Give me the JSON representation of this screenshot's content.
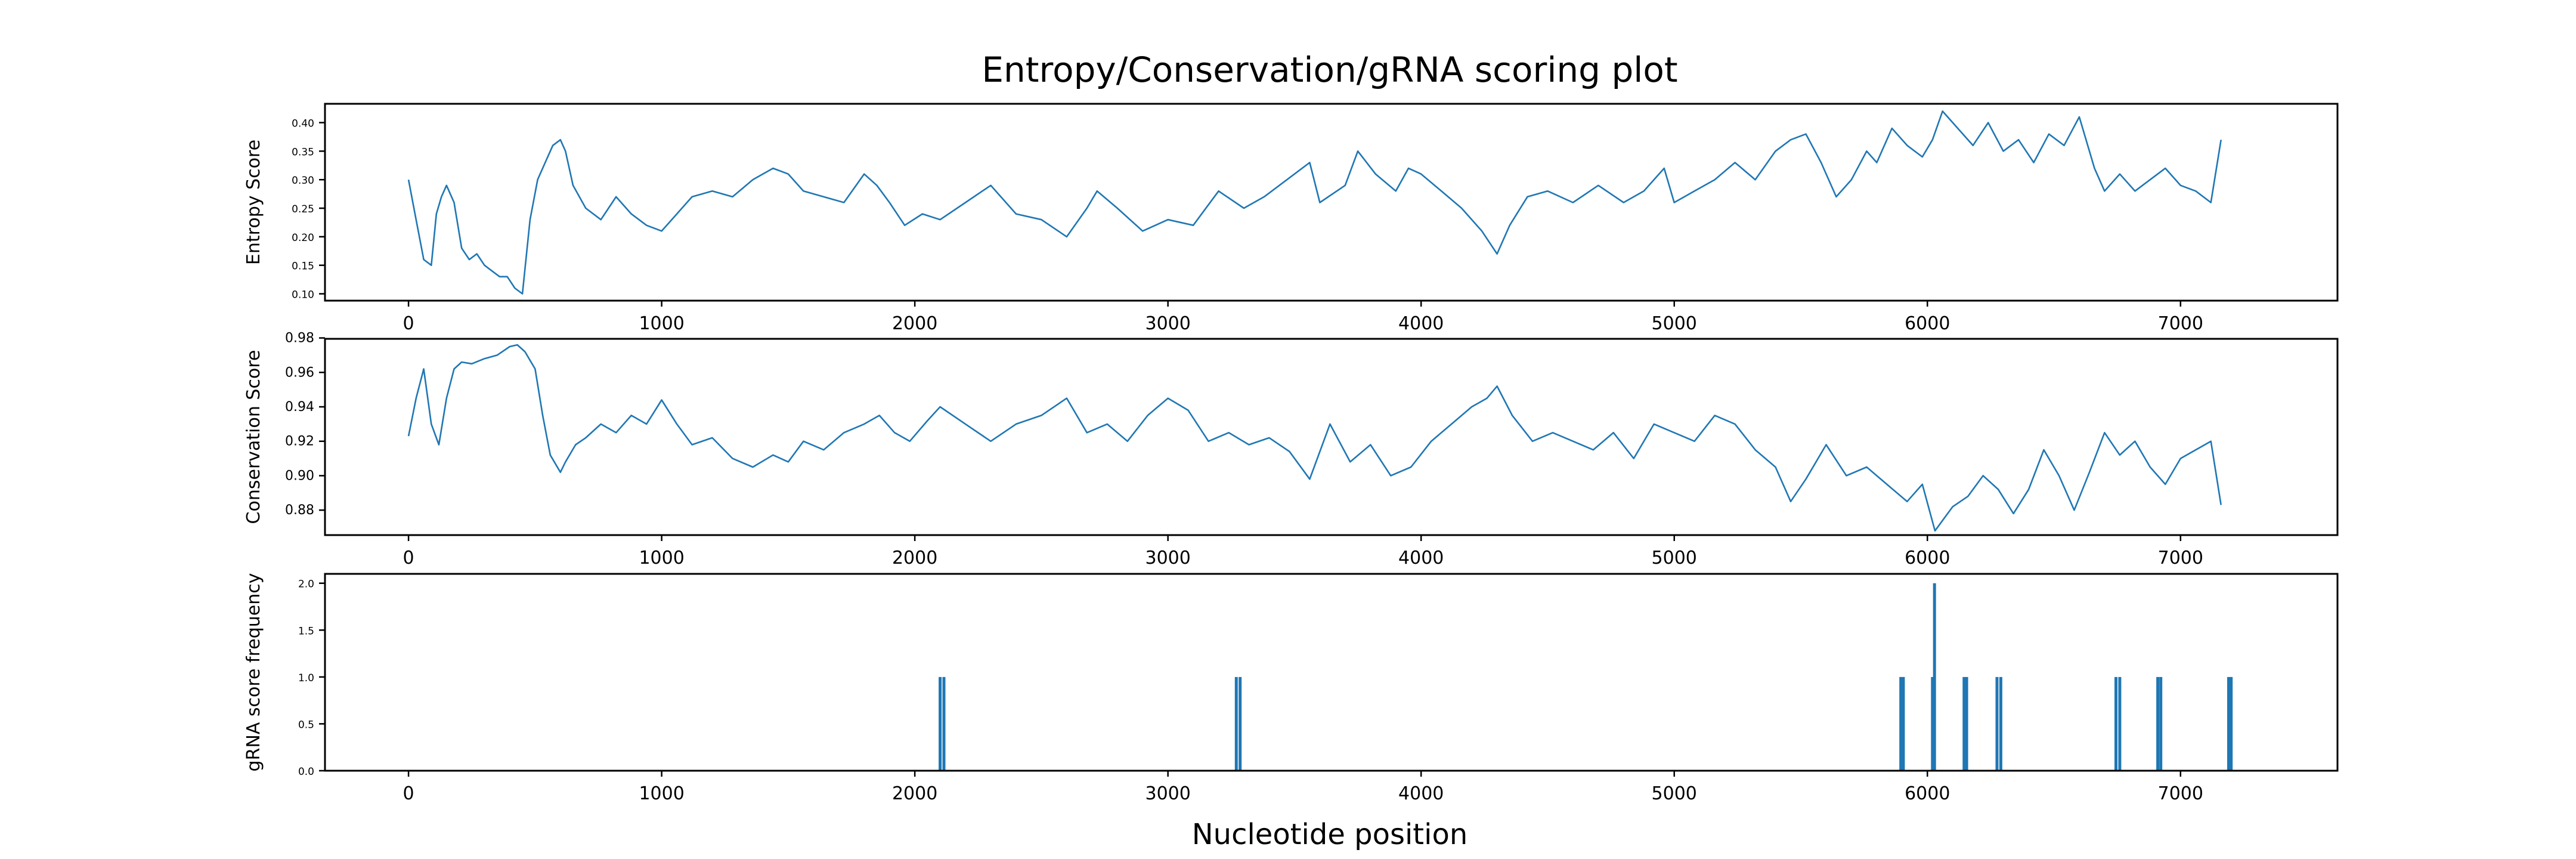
{
  "chart_data": {
    "type": "line",
    "title": "Entropy/Conservation/gRNA scoring plot",
    "xlabel": "Nucleotide position",
    "xlim": [
      -330,
      7620
    ],
    "xticks": [
      0,
      1000,
      2000,
      3000,
      4000,
      5000,
      6000,
      7000
    ],
    "xtick_labels": [
      "0",
      "1000",
      "2000",
      "3000",
      "4000",
      "5000",
      "6000",
      "7000"
    ],
    "color": "#1f77b4",
    "panels": [
      {
        "type": "line",
        "ylabel": "Entropy Score",
        "ylim": [
          0.088,
          0.433
        ],
        "yticks": [
          0.1,
          0.15,
          0.2,
          0.25,
          0.3,
          0.35,
          0.4
        ],
        "ytick_labels": [
          "0.10",
          "0.15",
          "0.20",
          "0.25",
          "0.30",
          "0.35",
          "0.40"
        ],
        "x": [
          0,
          30,
          60,
          90,
          110,
          130,
          150,
          180,
          210,
          240,
          270,
          300,
          330,
          360,
          390,
          420,
          450,
          480,
          510,
          540,
          570,
          600,
          620,
          650,
          700,
          760,
          820,
          880,
          940,
          1000,
          1060,
          1120,
          1200,
          1280,
          1360,
          1440,
          1500,
          1560,
          1640,
          1720,
          1800,
          1850,
          1900,
          1960,
          2030,
          2100,
          2200,
          2300,
          2400,
          2500,
          2600,
          2680,
          2720,
          2800,
          2900,
          3000,
          3100,
          3200,
          3300,
          3380,
          3500,
          3560,
          3600,
          3700,
          3750,
          3820,
          3900,
          3950,
          4000,
          4080,
          4160,
          4240,
          4300,
          4350,
          4420,
          4500,
          4600,
          4700,
          4800,
          4880,
          4960,
          5000,
          5080,
          5160,
          5240,
          5320,
          5400,
          5460,
          5520,
          5580,
          5640,
          5700,
          5760,
          5800,
          5860,
          5920,
          5980,
          6020,
          6060,
          6120,
          6180,
          6240,
          6300,
          6360,
          6420,
          6480,
          6540,
          6600,
          6660,
          6700,
          6760,
          6820,
          6880,
          6940,
          7000,
          7060,
          7120,
          7160
        ],
        "values": [
          0.3,
          0.23,
          0.16,
          0.15,
          0.24,
          0.27,
          0.29,
          0.26,
          0.18,
          0.16,
          0.17,
          0.15,
          0.14,
          0.13,
          0.13,
          0.11,
          0.1,
          0.23,
          0.3,
          0.33,
          0.36,
          0.37,
          0.35,
          0.29,
          0.25,
          0.23,
          0.27,
          0.24,
          0.22,
          0.21,
          0.24,
          0.27,
          0.28,
          0.27,
          0.3,
          0.32,
          0.31,
          0.28,
          0.27,
          0.26,
          0.31,
          0.29,
          0.26,
          0.22,
          0.24,
          0.23,
          0.26,
          0.29,
          0.24,
          0.23,
          0.2,
          0.25,
          0.28,
          0.25,
          0.21,
          0.23,
          0.22,
          0.28,
          0.25,
          0.27,
          0.31,
          0.33,
          0.26,
          0.29,
          0.35,
          0.31,
          0.28,
          0.32,
          0.31,
          0.28,
          0.25,
          0.21,
          0.17,
          0.22,
          0.27,
          0.28,
          0.26,
          0.29,
          0.26,
          0.28,
          0.32,
          0.26,
          0.28,
          0.3,
          0.33,
          0.3,
          0.35,
          0.37,
          0.38,
          0.33,
          0.27,
          0.3,
          0.35,
          0.33,
          0.39,
          0.36,
          0.34,
          0.37,
          0.42,
          0.39,
          0.36,
          0.4,
          0.35,
          0.37,
          0.33,
          0.38,
          0.36,
          0.41,
          0.32,
          0.28,
          0.31,
          0.28,
          0.3,
          0.32,
          0.29,
          0.28,
          0.26,
          0.37
        ]
      },
      {
        "type": "line",
        "ylabel": "Conservation Score",
        "ylim": [
          0.8655,
          0.9795
        ],
        "yticks": [
          0.88,
          0.9,
          0.92,
          0.94,
          0.96,
          0.98
        ],
        "ytick_labels": [
          "0.88",
          "0.90",
          "0.92",
          "0.94",
          "0.96",
          "0.98"
        ],
        "x": [
          0,
          30,
          60,
          90,
          120,
          150,
          180,
          210,
          250,
          300,
          350,
          400,
          430,
          460,
          500,
          530,
          560,
          600,
          620,
          660,
          700,
          760,
          820,
          880,
          940,
          1000,
          1060,
          1120,
          1200,
          1280,
          1360,
          1440,
          1500,
          1560,
          1640,
          1720,
          1800,
          1860,
          1920,
          1980,
          2050,
          2100,
          2200,
          2300,
          2400,
          2500,
          2600,
          2680,
          2760,
          2840,
          2920,
          3000,
          3080,
          3160,
          3240,
          3320,
          3400,
          3480,
          3560,
          3640,
          3720,
          3800,
          3880,
          3960,
          4040,
          4120,
          4200,
          4260,
          4300,
          4360,
          4440,
          4520,
          4600,
          4680,
          4760,
          4840,
          4920,
          5000,
          5080,
          5160,
          5240,
          5320,
          5400,
          5460,
          5520,
          5600,
          5680,
          5760,
          5840,
          5920,
          5980,
          6030,
          6100,
          6160,
          6220,
          6280,
          6340,
          6400,
          6460,
          6520,
          6580,
          6640,
          6700,
          6760,
          6820,
          6880,
          6940,
          7000,
          7060,
          7120,
          7160
        ],
        "values": [
          0.923,
          0.945,
          0.962,
          0.93,
          0.918,
          0.945,
          0.962,
          0.966,
          0.965,
          0.968,
          0.97,
          0.975,
          0.976,
          0.972,
          0.962,
          0.935,
          0.912,
          0.902,
          0.908,
          0.918,
          0.922,
          0.93,
          0.925,
          0.935,
          0.93,
          0.944,
          0.93,
          0.918,
          0.922,
          0.91,
          0.905,
          0.912,
          0.908,
          0.92,
          0.915,
          0.925,
          0.93,
          0.935,
          0.925,
          0.92,
          0.932,
          0.94,
          0.93,
          0.92,
          0.93,
          0.935,
          0.945,
          0.925,
          0.93,
          0.92,
          0.935,
          0.945,
          0.938,
          0.92,
          0.925,
          0.918,
          0.922,
          0.914,
          0.898,
          0.93,
          0.908,
          0.918,
          0.9,
          0.905,
          0.92,
          0.93,
          0.94,
          0.945,
          0.952,
          0.935,
          0.92,
          0.925,
          0.92,
          0.915,
          0.925,
          0.91,
          0.93,
          0.925,
          0.92,
          0.935,
          0.93,
          0.915,
          0.905,
          0.885,
          0.898,
          0.918,
          0.9,
          0.905,
          0.895,
          0.885,
          0.895,
          0.868,
          0.882,
          0.888,
          0.9,
          0.892,
          0.878,
          0.892,
          0.915,
          0.9,
          0.88,
          0.902,
          0.925,
          0.912,
          0.92,
          0.905,
          0.895,
          0.91,
          0.915,
          0.92,
          0.883
        ]
      },
      {
        "type": "bar",
        "ylabel": "gRNA score frequency",
        "ylim": [
          0,
          2.1
        ],
        "yticks": [
          0.0,
          0.5,
          1.0,
          1.5,
          2.0
        ],
        "ytick_labels": [
          "0.0",
          "0.5",
          "1.0",
          "1.5",
          "2.0"
        ],
        "x": [
          2100,
          2115,
          3270,
          3285,
          5895,
          5905,
          6020,
          6028,
          6145,
          6155,
          6275,
          6290,
          6745,
          6760,
          6910,
          6922,
          7190,
          7200
        ],
        "values": [
          1,
          1,
          1,
          1,
          1,
          1,
          1,
          2,
          1,
          1,
          1,
          1,
          1,
          1,
          1,
          1,
          1,
          1
        ]
      }
    ]
  }
}
